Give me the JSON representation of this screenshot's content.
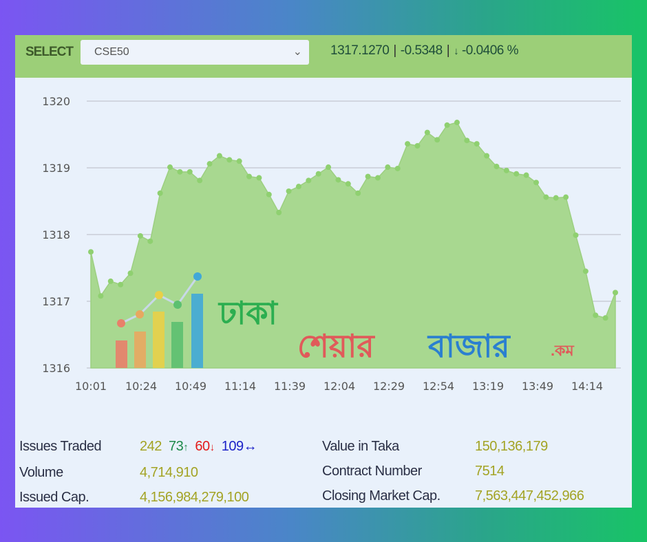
{
  "header": {
    "select_label": "SELECT",
    "selected_index": "CSE50",
    "value": "1317.1270",
    "change": "-0.5348",
    "change_pct": "-0.0406 %",
    "down_arrow": "↓",
    "chevron": "⌄"
  },
  "chart_data": {
    "type": "area",
    "title": "",
    "xlabel": "",
    "ylabel": "",
    "ylim": [
      1316,
      1320
    ],
    "yticks": [
      "1320",
      "1319",
      "1318",
      "1317",
      "1316"
    ],
    "xticks": [
      "10:01",
      "10:24",
      "10:49",
      "11:14",
      "11:39",
      "12:04",
      "12:29",
      "12:54",
      "13:19",
      "13:49",
      "14:14"
    ],
    "values": [
      1317.74,
      1317.08,
      1317.3,
      1317.25,
      1317.42,
      1317.98,
      1317.9,
      1318.62,
      1319.01,
      1318.94,
      1318.94,
      1318.81,
      1319.06,
      1319.18,
      1319.12,
      1319.1,
      1318.87,
      1318.85,
      1318.6,
      1318.33,
      1318.65,
      1318.72,
      1318.81,
      1318.91,
      1319.01,
      1318.82,
      1318.76,
      1318.62,
      1318.87,
      1318.85,
      1319.01,
      1318.99,
      1319.36,
      1319.33,
      1319.53,
      1319.42,
      1319.64,
      1319.68,
      1319.41,
      1319.36,
      1319.18,
      1319.02,
      1318.96,
      1318.91,
      1318.89,
      1318.78,
      1318.56,
      1318.55,
      1318.56,
      1317.99,
      1317.45,
      1316.79,
      1316.75,
      1317.13
    ],
    "fill_color": "#a8d890",
    "point_color": "#8fd070",
    "grid": true
  },
  "watermark": {
    "text1": "ঢাকা",
    "text2": "শেয়ার বাজার",
    "text3": ".কম"
  },
  "stats": {
    "issues_traded_label": "Issues Traded",
    "issues_total": "242",
    "issues_up": "73",
    "issues_down": "60",
    "issues_unchanged": "109",
    "up_arrow": "↑",
    "down_arrow": "↓",
    "eq_arrow": "↔",
    "volume_label": "Volume",
    "volume": "4,714,910",
    "issued_cap_label": "Issued Cap.",
    "issued_cap": "4,156,984,279,100",
    "value_label": "Value in Taka",
    "value": "150,136,179",
    "contract_label": "Contract Number",
    "contract": "7514",
    "closing_cap_label": "Closing Market Cap.",
    "closing_cap": "7,563,447,452,966"
  }
}
